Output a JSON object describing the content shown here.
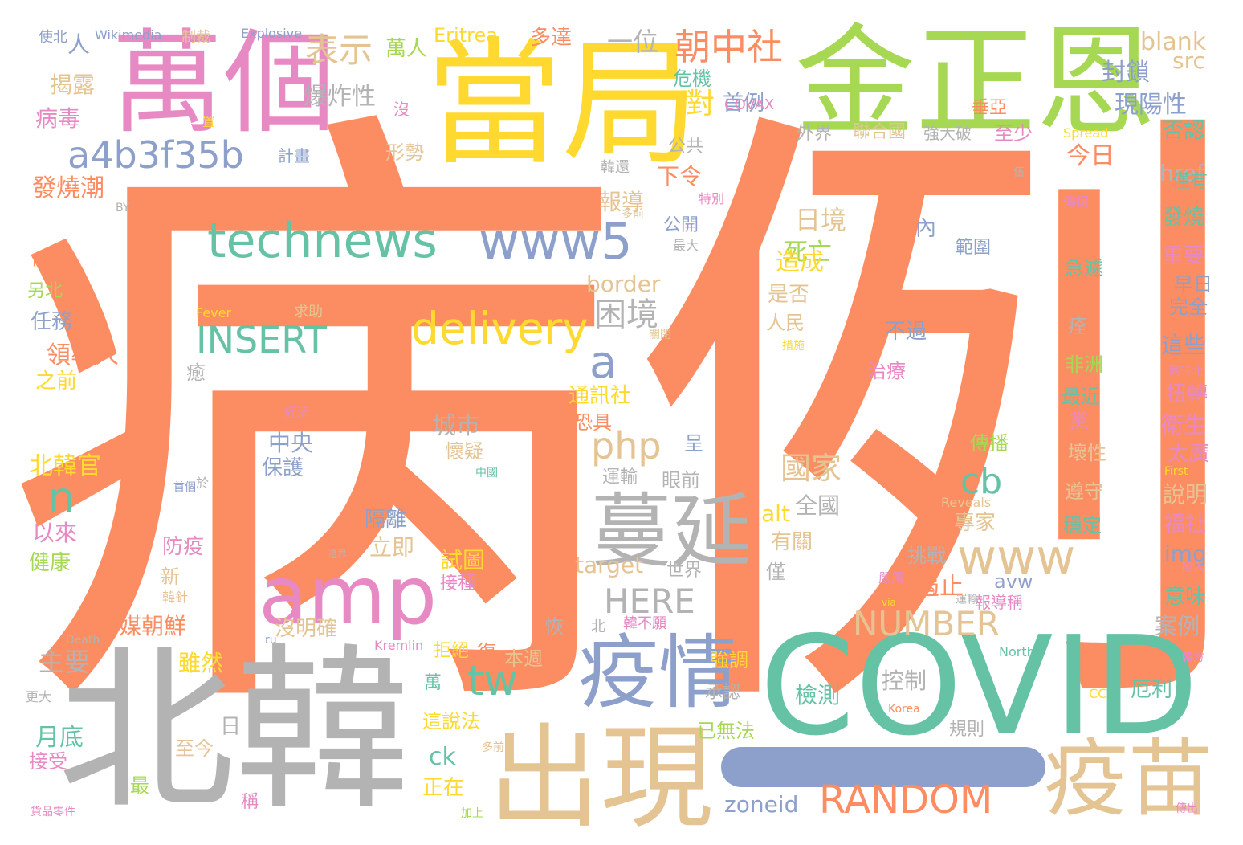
{
  "palette": {
    "orange": "#fc8d62",
    "green": "#66c2a5",
    "blue": "#8da0cb",
    "pink": "#e78ac3",
    "lime": "#a6d854",
    "yellow": "#ffd92f",
    "tan": "#e5c494",
    "gray": "#b3b3b3"
  },
  "words": [
    {
      "text": "病例",
      "color": "orange"
    },
    {
      "text": "北韓",
      "color": "gray"
    },
    {
      "text": "COVID",
      "color": "green"
    },
    {
      "text": "當局",
      "color": "yellow"
    },
    {
      "text": "金正恩",
      "color": "lime"
    },
    {
      "text": "萬個",
      "color": "pink"
    },
    {
      "text": "出現",
      "color": "tan"
    },
    {
      "text": "疫苗",
      "color": "tan"
    },
    {
      "text": "疫情",
      "color": "blue"
    },
    {
      "text": "amp",
      "color": "pink"
    },
    {
      "text": "蔓延",
      "color": "gray"
    },
    {
      "text": "technews",
      "color": "green"
    },
    {
      "text": "www5",
      "color": "blue"
    },
    {
      "text": "www",
      "color": "tan"
    },
    {
      "text": "delivery",
      "color": "yellow"
    },
    {
      "text": "a4b3f35b",
      "color": "blue"
    },
    {
      "text": "RANDOM",
      "color": "orange"
    },
    {
      "text": "NUMBER",
      "color": "tan"
    },
    {
      "text": "INSERT",
      "color": "green"
    },
    {
      "text": "HERE",
      "color": "gray"
    },
    {
      "text": "php",
      "color": "tan"
    },
    {
      "text": "tw",
      "color": "green"
    },
    {
      "text": "a",
      "color": "blue"
    },
    {
      "text": "n",
      "color": "green"
    },
    {
      "text": "cb",
      "color": "green"
    },
    {
      "text": "朝中社",
      "color": "orange"
    },
    {
      "text": "表示",
      "color": "tan"
    },
    {
      "text": "困境",
      "color": "gray"
    },
    {
      "text": "國家",
      "color": "tan"
    },
    {
      "text": "一位",
      "color": "gray"
    },
    {
      "text": "對",
      "color": "yellow"
    },
    {
      "text": "blank",
      "color": "tan"
    },
    {
      "text": "src",
      "color": "tan"
    },
    {
      "text": "href",
      "color": "gray"
    },
    {
      "text": "封鎖",
      "color": "blue"
    },
    {
      "text": "現陽性",
      "color": "blue"
    },
    {
      "text": "首例",
      "color": "blue"
    },
    {
      "text": "危機",
      "color": "green"
    },
    {
      "text": "COVAX",
      "color": "pink"
    },
    {
      "text": "垂亞",
      "color": "orange"
    },
    {
      "text": "否認",
      "color": "green"
    },
    {
      "text": "今日",
      "color": "orange"
    },
    {
      "text": "揭露",
      "color": "tan"
    },
    {
      "text": "病毒",
      "color": "pink"
    },
    {
      "text": "爆炸性",
      "color": "gray"
    },
    {
      "text": "人",
      "color": "blue"
    },
    {
      "text": "萬人",
      "color": "lime"
    },
    {
      "text": "Eritrea",
      "color": "yellow"
    },
    {
      "text": "多達",
      "color": "orange"
    },
    {
      "text": "發燒潮",
      "color": "orange"
    },
    {
      "text": "形勢",
      "color": "tan"
    },
    {
      "text": "計畫",
      "color": "blue"
    },
    {
      "text": "沒",
      "color": "pink"
    },
    {
      "text": "外界",
      "color": "gray"
    },
    {
      "text": "聯合國",
      "color": "tan"
    },
    {
      "text": "強大破",
      "color": "gray"
    },
    {
      "text": "至少",
      "color": "pink"
    },
    {
      "text": "公共",
      "color": "gray"
    },
    {
      "text": "下令",
      "color": "orange"
    },
    {
      "text": "報導",
      "color": "tan"
    },
    {
      "text": "日境",
      "color": "tan"
    },
    {
      "text": "死亡",
      "color": "lime"
    },
    {
      "text": "公開",
      "color": "blue"
    },
    {
      "text": "內",
      "color": "blue"
    },
    {
      "text": "範圍",
      "color": "blue"
    },
    {
      "text": "造成",
      "color": "yellow"
    },
    {
      "text": "border",
      "color": "tan"
    },
    {
      "text": "是否",
      "color": "tan"
    },
    {
      "text": "人民",
      "color": "tan"
    },
    {
      "text": "不過",
      "color": "blue"
    },
    {
      "text": "治療",
      "color": "pink"
    },
    {
      "text": "任務",
      "color": "blue"
    },
    {
      "text": "領導人",
      "color": "orange"
    },
    {
      "text": "之前",
      "color": "yellow"
    },
    {
      "text": "通訊社",
      "color": "yellow"
    },
    {
      "text": "恐具",
      "color": "orange"
    },
    {
      "text": "城市",
      "color": "gray"
    },
    {
      "text": "中央",
      "color": "blue"
    },
    {
      "text": "保護",
      "color": "blue"
    },
    {
      "text": "懷疑",
      "color": "tan"
    },
    {
      "text": "呈",
      "color": "blue"
    },
    {
      "text": "運輸",
      "color": "gray"
    },
    {
      "text": "眼前",
      "color": "gray"
    },
    {
      "text": "北韓官",
      "color": "yellow"
    },
    {
      "text": "以來",
      "color": "pink"
    },
    {
      "text": "健康",
      "color": "lime"
    },
    {
      "text": "防疫",
      "color": "pink"
    },
    {
      "text": "隔離",
      "color": "blue"
    },
    {
      "text": "立即",
      "color": "tan"
    },
    {
      "text": "試圖",
      "color": "yellow"
    },
    {
      "text": "接種",
      "color": "pink"
    },
    {
      "text": "target",
      "color": "tan"
    },
    {
      "text": "世界",
      "color": "gray"
    },
    {
      "text": "僅",
      "color": "gray"
    },
    {
      "text": "有關",
      "color": "tan"
    },
    {
      "text": "全國",
      "color": "gray"
    },
    {
      "text": "alt",
      "color": "yellow"
    },
    {
      "text": "遏止",
      "color": "orange"
    },
    {
      "text": "avw",
      "color": "blue"
    },
    {
      "text": "挑戰",
      "color": "gray"
    },
    {
      "text": "專家",
      "color": "tan"
    },
    {
      "text": "媒朝鮮",
      "color": "orange"
    },
    {
      "text": "沒明確",
      "color": "tan"
    },
    {
      "text": "恢",
      "color": "gray"
    },
    {
      "text": "北",
      "color": "gray"
    },
    {
      "text": "主要",
      "color": "gray"
    },
    {
      "text": "雖然",
      "color": "yellow"
    },
    {
      "text": "月底",
      "color": "green"
    },
    {
      "text": "日",
      "color": "gray"
    },
    {
      "text": "至今",
      "color": "tan"
    },
    {
      "text": "最",
      "color": "lime"
    },
    {
      "text": "稱",
      "color": "pink"
    },
    {
      "text": "接受",
      "color": "pink"
    },
    {
      "text": "復",
      "color": "orange"
    },
    {
      "text": "本週",
      "color": "tan"
    },
    {
      "text": "拒絕",
      "color": "yellow"
    },
    {
      "text": "萬",
      "color": "green"
    },
    {
      "text": "這說法",
      "color": "yellow"
    },
    {
      "text": "ck",
      "color": "green"
    },
    {
      "text": "正在",
      "color": "yellow"
    },
    {
      "text": "強調",
      "color": "yellow"
    },
    {
      "text": "承認",
      "color": "gray"
    },
    {
      "text": "已無法",
      "color": "lime"
    },
    {
      "text": "檢測",
      "color": "green"
    },
    {
      "text": "控制",
      "color": "gray"
    },
    {
      "text": "zoneid",
      "color": "blue"
    },
    {
      "text": "規則",
      "color": "gray"
    },
    {
      "text": "厄利",
      "color": "green"
    },
    {
      "text": "僅有",
      "color": "green"
    },
    {
      "text": "發燒",
      "color": "green"
    },
    {
      "text": "報告",
      "color": "orange"
    },
    {
      "text": "急遽",
      "color": "green"
    },
    {
      "text": "重要",
      "color": "pink"
    },
    {
      "text": "早日",
      "color": "blue"
    },
    {
      "text": "完全",
      "color": "blue"
    },
    {
      "text": "痊",
      "color": "gray"
    },
    {
      "text": "這些",
      "color": "blue"
    },
    {
      "text": "非洲",
      "color": "lime"
    },
    {
      "text": "最近",
      "color": "green"
    },
    {
      "text": "扭轉",
      "color": "pink"
    },
    {
      "text": "衛生",
      "color": "pink"
    },
    {
      "text": "黨",
      "color": "pink"
    },
    {
      "text": "太廣",
      "color": "pink"
    },
    {
      "text": "傳播",
      "color": "lime"
    },
    {
      "text": "壞性",
      "color": "tan"
    },
    {
      "text": "說明",
      "color": "tan"
    },
    {
      "text": "遵守",
      "color": "tan"
    },
    {
      "text": "福祉",
      "color": "pink"
    },
    {
      "text": "穩定",
      "color": "green"
    },
    {
      "text": "img",
      "color": "blue"
    },
    {
      "text": "意味",
      "color": "green"
    },
    {
      "text": "案例",
      "color": "gray"
    },
    {
      "text": "報導稱",
      "color": "pink"
    },
    {
      "text": "新",
      "color": "tan"
    },
    {
      "text": "癒",
      "color": "gray"
    },
    {
      "text": "另北",
      "color": "lime"
    },
    {
      "text": "兩年",
      "color": "orange"
    },
    {
      "text": "使北",
      "color": "blue"
    },
    {
      "text": "Wikimedia",
      "color": "blue"
    },
    {
      "text": "制裁",
      "color": "tan"
    },
    {
      "text": "Explosive",
      "color": "blue"
    },
    {
      "text": "置",
      "color": "yellow"
    },
    {
      "text": "韓還",
      "color": "gray"
    },
    {
      "text": "特別",
      "color": "pink"
    },
    {
      "text": "BY",
      "color": "gray"
    },
    {
      "text": "多前",
      "color": "tan"
    },
    {
      "text": "最大",
      "color": "gray"
    },
    {
      "text": "Fever",
      "color": "yellow"
    },
    {
      "text": "求助",
      "color": "tan"
    },
    {
      "text": "關閉",
      "color": "tan"
    },
    {
      "text": "措施",
      "color": "yellow"
    },
    {
      "text": "經濟",
      "color": "pink"
    },
    {
      "text": "中國",
      "color": "green"
    },
    {
      "text": "首個",
      "color": "blue"
    },
    {
      "text": "於",
      "color": "gray"
    },
    {
      "text": "邊界",
      "color": "gray"
    },
    {
      "text": "韓針",
      "color": "tan"
    },
    {
      "text": "Death",
      "color": "gray"
    },
    {
      "text": "更大",
      "color": "gray"
    },
    {
      "text": "ru",
      "color": "blue"
    },
    {
      "text": "Kremlin",
      "color": "pink"
    },
    {
      "text": "韓不願",
      "color": "pink"
    },
    {
      "text": "Reveals",
      "color": "tan"
    },
    {
      "text": "嚴厲",
      "color": "pink"
    },
    {
      "text": "via",
      "color": "yellow"
    },
    {
      "text": "North",
      "color": "green"
    },
    {
      "text": "Korea",
      "color": "orange"
    },
    {
      "text": "CC",
      "color": "yellow"
    },
    {
      "text": "Spread",
      "color": "yellow"
    },
    {
      "text": "First",
      "color": "yellow"
    },
    {
      "text": "加劇",
      "color": "orange"
    },
    {
      "text": "同時北",
      "color": "pink"
    },
    {
      "text": "陷入",
      "color": "pink"
    },
    {
      "text": "傳出",
      "color": "pink"
    },
    {
      "text": "傳揚",
      "color": "pink"
    },
    {
      "text": "伍",
      "color": "gray"
    },
    {
      "text": "多前",
      "color": "tan"
    },
    {
      "text": "韓方",
      "color": "pink"
    },
    {
      "text": "貨品零件",
      "color": "pink"
    },
    {
      "text": "加上",
      "color": "lime"
    },
    {
      "text": "運輸",
      "color": "gray"
    }
  ]
}
